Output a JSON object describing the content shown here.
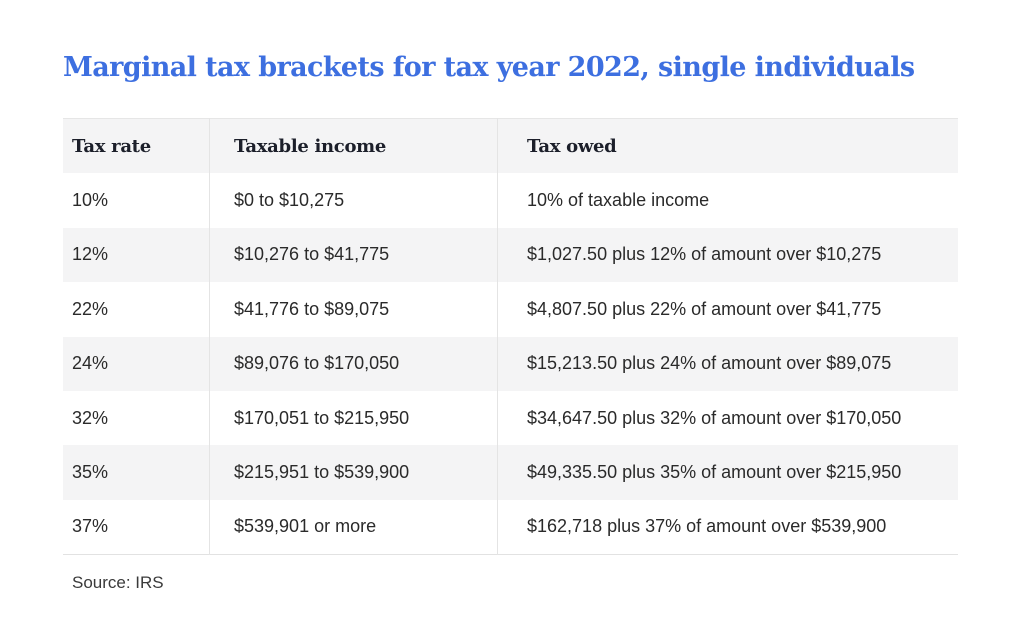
{
  "title": "Marginal tax brackets for tax year 2022, single individuals",
  "table": {
    "headers": [
      "Tax rate",
      "Taxable income",
      "Tax owed"
    ],
    "rows": [
      [
        "10%",
        "$0 to $10,275",
        "10% of taxable income"
      ],
      [
        "12%",
        "$10,276 to $41,775",
        "$1,027.50 plus 12% of amount over $10,275"
      ],
      [
        "22%",
        "$41,776 to $89,075",
        "$4,807.50 plus 22% of amount over $41,775"
      ],
      [
        "24%",
        "$89,076 to $170,050",
        "$15,213.50 plus 24% of amount over $89,075"
      ],
      [
        "32%",
        "$170,051 to $215,950",
        "$34,647.50 plus 32% of amount over $170,050"
      ],
      [
        "35%",
        "$215,951 to $539,900",
        "$49,335.50 plus 35% of amount over $215,950"
      ],
      [
        "37%",
        "$539,901 or more",
        "$162,718 plus 37% of amount over $539,900"
      ]
    ]
  },
  "source": "Source: IRS",
  "colors": {
    "title": "#3d6fe0",
    "shaded_row": "#f4f4f5"
  }
}
